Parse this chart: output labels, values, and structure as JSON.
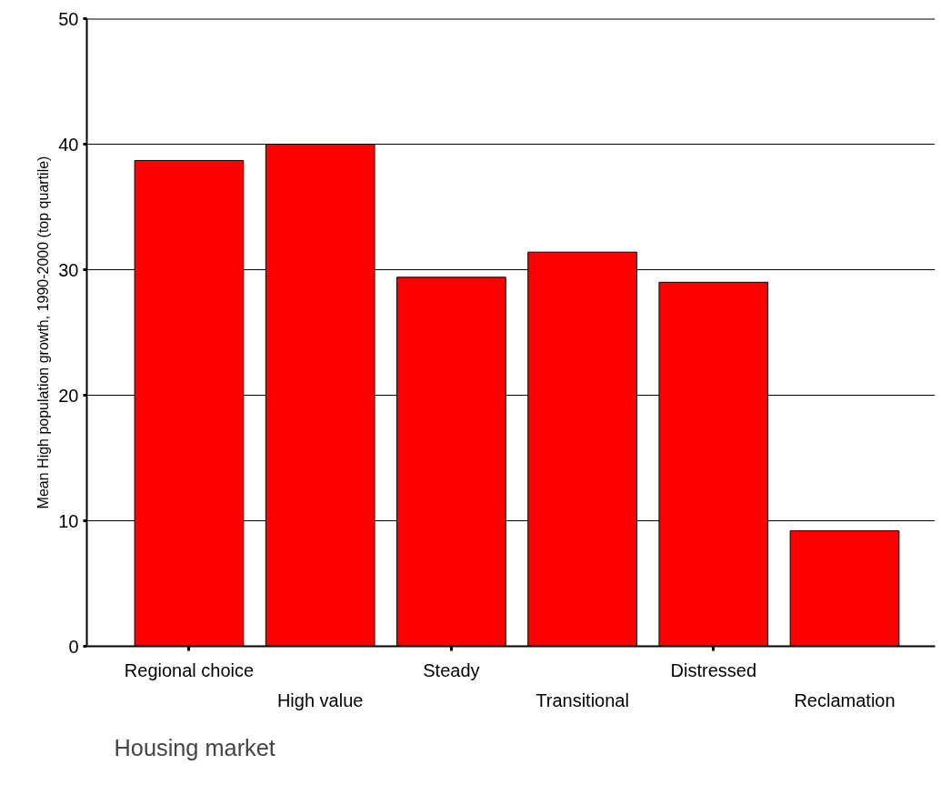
{
  "chart_data": {
    "type": "bar",
    "xlabel": "Housing market",
    "ylabel": "Mean High population growth, 1990-2000 (top quartile)",
    "categories": [
      "Regional choice",
      "High value",
      "Steady",
      "Transitional",
      "Distressed",
      "Reclamation"
    ],
    "values": [
      38.7,
      40.0,
      29.4,
      31.4,
      29.0,
      9.2
    ],
    "color": "#ff0000",
    "ylim": [
      0,
      50
    ],
    "yticks": [
      0,
      10,
      20,
      30,
      40,
      50
    ],
    "grid": "y"
  }
}
